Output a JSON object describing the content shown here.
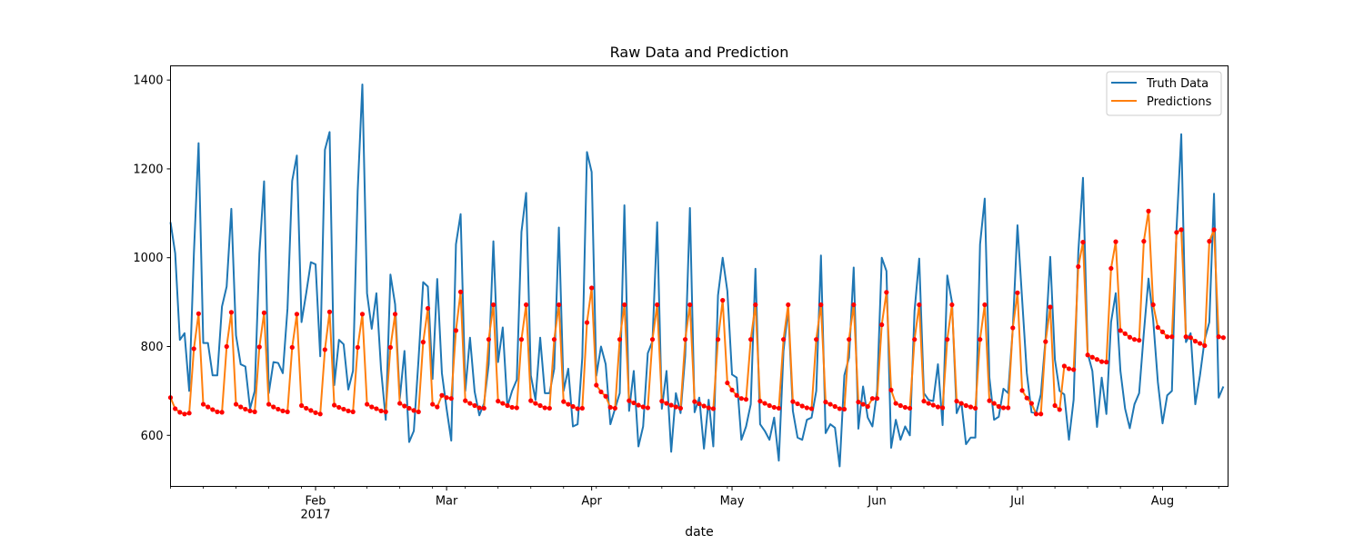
{
  "chart_data": {
    "type": "line",
    "title": "Raw Data and Prediction",
    "xlabel": "date",
    "ylabel": "",
    "x_start": "2017-01-01",
    "x_end": "2017-08-15",
    "ylim": [
      485,
      1432
    ],
    "yticks": [
      600,
      800,
      1000,
      1200,
      1400
    ],
    "xticks": [
      {
        "date": "2017-02-01",
        "label": "Feb",
        "sublabel": "2017"
      },
      {
        "date": "2017-03-01",
        "label": "Mar",
        "sublabel": ""
      },
      {
        "date": "2017-04-01",
        "label": "Apr",
        "sublabel": ""
      },
      {
        "date": "2017-05-01",
        "label": "May",
        "sublabel": ""
      },
      {
        "date": "2017-06-01",
        "label": "Jun",
        "sublabel": ""
      },
      {
        "date": "2017-07-01",
        "label": "Jul",
        "sublabel": ""
      },
      {
        "date": "2017-08-01",
        "label": "Aug",
        "sublabel": ""
      }
    ],
    "grid": false,
    "legend_position": "top-right",
    "legend": [
      "Truth Data",
      "Predictions"
    ],
    "colors": {
      "truth": "#1f77b4",
      "prediction": "#ff7f0e",
      "marker": "#ff0000"
    },
    "series": [
      {
        "name": "Truth Data",
        "values": [
          1080,
          1010,
          815,
          830,
          700,
          1010,
          1258,
          808,
          808,
          735,
          735,
          890,
          935,
          1110,
          825,
          760,
          755,
          660,
          700,
          1010,
          1172,
          695,
          765,
          763,
          740,
          885,
          1173,
          1230,
          855,
          920,
          990,
          985,
          778,
          1243,
          1283,
          713,
          815,
          805,
          703,
          745,
          1150,
          1390,
          920,
          840,
          920,
          748,
          635,
          962,
          895,
          683,
          790,
          585,
          610,
          770,
          945,
          935,
          727,
          952,
          740,
          660,
          588,
          1030,
          1098,
          700,
          820,
          698,
          645,
          672,
          760,
          1037,
          765,
          843,
          665,
          700,
          725,
          1058,
          1146,
          735,
          680,
          820,
          695,
          695,
          750,
          1068,
          700,
          750,
          620,
          625,
          775,
          1238,
          1193,
          734,
          800,
          760,
          625,
          660,
          695,
          1118,
          655,
          745,
          575,
          620,
          785,
          812,
          1080,
          660,
          745,
          563,
          695,
          650,
          780,
          1112,
          652,
          685,
          570,
          680,
          575,
          915,
          1000,
          925,
          737,
          730,
          590,
          620,
          670,
          975,
          625,
          610,
          590,
          640,
          543,
          790,
          885,
          655,
          595,
          590,
          635,
          640,
          700,
          1005,
          605,
          625,
          617,
          530,
          735,
          775,
          978,
          615,
          710,
          640,
          620,
          700,
          1000,
          970,
          572,
          635,
          590,
          620,
          600,
          880,
          998,
          695,
          680,
          677,
          760,
          623,
          960,
          900,
          650,
          675,
          580,
          595,
          595,
          1030,
          1133,
          730,
          635,
          642,
          705,
          695,
          840,
          1073,
          905,
          740,
          652,
          650,
          692,
          818,
          1002,
          770,
          700,
          692,
          590,
          680,
          1013,
          1180,
          785,
          745,
          619,
          730,
          648,
          855,
          920,
          745,
          660,
          616,
          670,
          695,
          830,
          953,
          860,
          720,
          627,
          690,
          700,
          1067,
          1278,
          810,
          830,
          670,
          735,
          815,
          855,
          1144,
          685,
          710
        ]
      },
      {
        "name": "Predictions",
        "values": [
          685,
          660,
          652,
          648,
          650,
          795,
          874,
          670,
          664,
          658,
          653,
          652,
          800,
          877,
          670,
          664,
          659,
          655,
          653,
          799,
          876,
          670,
          664,
          659,
          655,
          653,
          798,
          873,
          667,
          661,
          656,
          651,
          648,
          793,
          878,
          668,
          663,
          659,
          655,
          653,
          798,
          873,
          670,
          664,
          660,
          655,
          653,
          798,
          873,
          672,
          666,
          661,
          656,
          653,
          810,
          886,
          670,
          664,
          690,
          685,
          683,
          836,
          923,
          678,
          672,
          667,
          662,
          661,
          816,
          894,
          677,
          672,
          667,
          663,
          662,
          816,
          894,
          678,
          672,
          667,
          662,
          661,
          816,
          894,
          676,
          670,
          665,
          660,
          661,
          854,
          932,
          713,
          698,
          688,
          663,
          661,
          816,
          894,
          678,
          673,
          668,
          664,
          662,
          816,
          894,
          677,
          672,
          668,
          664,
          661,
          816,
          894,
          676,
          671,
          666,
          662,
          660,
          816,
          904,
          718,
          702,
          690,
          683,
          681,
          816,
          894,
          677,
          672,
          667,
          663,
          661,
          816,
          894,
          676,
          671,
          666,
          662,
          660,
          816,
          894,
          675,
          670,
          665,
          660,
          659,
          816,
          894,
          675,
          670,
          665,
          683,
          683,
          849,
          922,
          702,
          672,
          667,
          663,
          661,
          816,
          894,
          677,
          672,
          668,
          664,
          662,
          816,
          894,
          677,
          672,
          667,
          664,
          661,
          816,
          894,
          678,
          672,
          665,
          662,
          662,
          842,
          921,
          701,
          684,
          672,
          648,
          648,
          811,
          889,
          667,
          658,
          756,
          750,
          748,
          980,
          1035,
          781,
          776,
          771,
          766,
          765,
          976,
          1036,
          836,
          829,
          821,
          816,
          814,
          1037,
          1105,
          894,
          843,
          833,
          822,
          822,
          1057,
          1063,
          822,
          820,
          812,
          807,
          802,
          1037,
          1063,
          822,
          820
        ]
      }
    ]
  }
}
